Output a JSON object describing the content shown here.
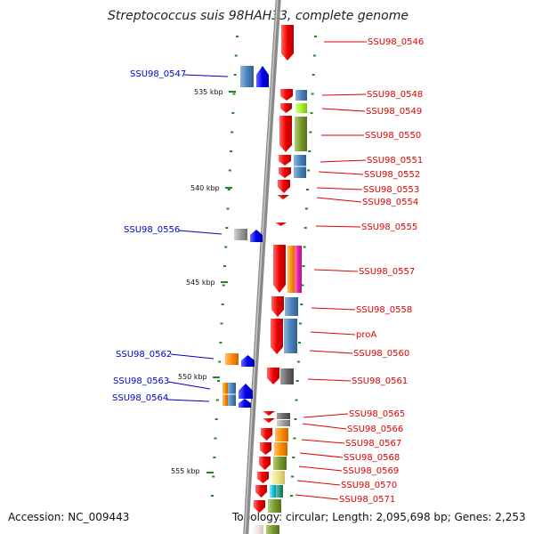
{
  "title": "Streptococcus suis 98HAH33, complete genome",
  "accession": "Accession: NC_009443",
  "topology": "Topology: circular; Length: 2,095,698 bp; Genes: 2,253",
  "colors": {
    "forward_gene": "#ee0000",
    "reverse_gene": "#0000ee",
    "label_forward": "#e00000",
    "label_reverse": "#0000cc",
    "backbone": "#8a8a8a",
    "tick": "#1a8a1a"
  },
  "scale_labels": [
    "535 kbp",
    "540 kbp",
    "545 kbp",
    "550 kbp",
    "555 kbp"
  ],
  "forward_labels": [
    "SSU98_0546",
    "SSU98_0548",
    "SSU98_0549",
    "SSU98_0550",
    "SSU98_0551",
    "SSU98_0552",
    "SSU98_0553",
    "SSU98_0554",
    "SSU98_0555",
    "SSU98_0557",
    "SSU98_0558",
    "proA",
    "SSU98_0560",
    "SSU98_0561",
    "SSU98_0565",
    "SSU98_0566",
    "SSU98_0567",
    "SSU98_0568",
    "SSU98_0569",
    "SSU98_0570",
    "SSU98_0571"
  ],
  "reverse_labels": [
    "SSU98_0547",
    "SSU98_0556",
    "SSU98_0562",
    "SSU98_0563",
    "SSU98_0564"
  ]
}
